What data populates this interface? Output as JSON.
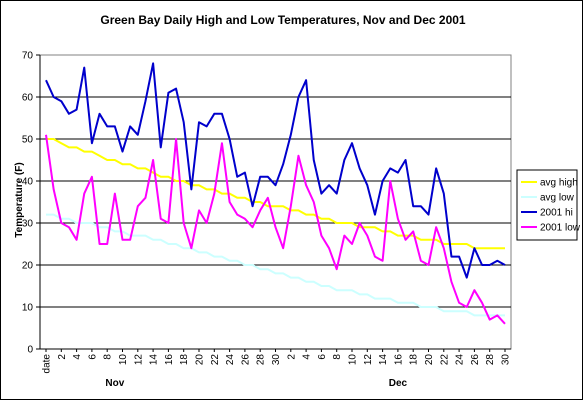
{
  "chart_data": {
    "type": "line",
    "title": "Green Bay Daily High and Low Temperatures, Nov and Dec 2001",
    "ylabel": "Temperature (F)",
    "xlabel": "",
    "ylim": [
      0,
      70
    ],
    "y_ticks": [
      0,
      10,
      20,
      30,
      40,
      50,
      60,
      70
    ],
    "x_tick_labels": [
      "date",
      "2",
      "4",
      "6",
      "8",
      "10",
      "12",
      "14",
      "16",
      "18",
      "20",
      "22",
      "24",
      "26",
      "28",
      "30",
      "2",
      "4",
      "6",
      "8",
      "10",
      "12",
      "14",
      "16",
      "18",
      "20",
      "22",
      "24",
      "26",
      "28",
      "30"
    ],
    "month_labels": [
      {
        "label": "Nov",
        "x": 10
      },
      {
        "label": "Dec",
        "x": 47
      }
    ],
    "grid": "horizontal",
    "legend_position": "right",
    "x": [
      1,
      2,
      3,
      4,
      5,
      6,
      7,
      8,
      9,
      10,
      11,
      12,
      13,
      14,
      15,
      16,
      17,
      18,
      19,
      20,
      21,
      22,
      23,
      24,
      25,
      26,
      27,
      28,
      29,
      30,
      31,
      32,
      33,
      34,
      35,
      36,
      37,
      38,
      39,
      40,
      41,
      42,
      43,
      44,
      45,
      46,
      47,
      48,
      49,
      50,
      51,
      52,
      53,
      54,
      55,
      56,
      57,
      58,
      59,
      60,
      61
    ],
    "series": [
      {
        "name": "avg high",
        "color": "#ffff00",
        "values": [
          50,
          50,
          49,
          48,
          48,
          47,
          47,
          46,
          45,
          45,
          44,
          44,
          43,
          43,
          42,
          41,
          41,
          40,
          40,
          39,
          39,
          38,
          38,
          37,
          37,
          36,
          36,
          35,
          35,
          34,
          34,
          34,
          33,
          33,
          32,
          32,
          31,
          31,
          30,
          30,
          30,
          29,
          29,
          29,
          28,
          28,
          27,
          27,
          27,
          26,
          26,
          26,
          25,
          25,
          25,
          25,
          24,
          24,
          24,
          24,
          24
        ]
      },
      {
        "name": "avg low",
        "color": "#ccffff",
        "values": [
          32,
          32,
          31,
          31,
          30,
          30,
          30,
          29,
          29,
          28,
          28,
          27,
          27,
          27,
          26,
          26,
          25,
          25,
          24,
          24,
          23,
          23,
          22,
          22,
          21,
          21,
          20,
          20,
          19,
          19,
          18,
          18,
          17,
          17,
          16,
          16,
          15,
          15,
          14,
          14,
          14,
          13,
          13,
          12,
          12,
          12,
          11,
          11,
          11,
          10,
          10,
          10,
          9,
          9,
          9,
          9,
          8,
          8,
          8,
          8,
          8
        ]
      },
      {
        "name": "2001 hi",
        "color": "#0000cc",
        "values": [
          64,
          60,
          59,
          56,
          57,
          67,
          49,
          56,
          53,
          53,
          47,
          53,
          51,
          59,
          68,
          48,
          61,
          62,
          54,
          38,
          54,
          53,
          56,
          56,
          50,
          41,
          42,
          34,
          41,
          41,
          39,
          44,
          51,
          60,
          64,
          45,
          37,
          39,
          37,
          45,
          49,
          43,
          39,
          32,
          40,
          43,
          42,
          45,
          34,
          34,
          32,
          43,
          37,
          22,
          22,
          17,
          24,
          20,
          20,
          21,
          20
        ]
      },
      {
        "name": "2001 low",
        "color": "#ff00ff",
        "values": [
          51,
          38,
          30,
          29,
          26,
          37,
          41,
          25,
          25,
          37,
          26,
          26,
          34,
          36,
          45,
          31,
          30,
          50,
          30,
          24,
          33,
          30,
          37,
          49,
          35,
          32,
          31,
          29,
          33,
          36,
          29,
          24,
          34,
          46,
          39,
          35,
          27,
          24,
          19,
          27,
          25,
          30,
          27,
          22,
          21,
          40,
          31,
          26,
          28,
          21,
          20,
          29,
          24,
          16,
          11,
          10,
          14,
          11,
          7,
          8,
          6
        ]
      }
    ]
  }
}
